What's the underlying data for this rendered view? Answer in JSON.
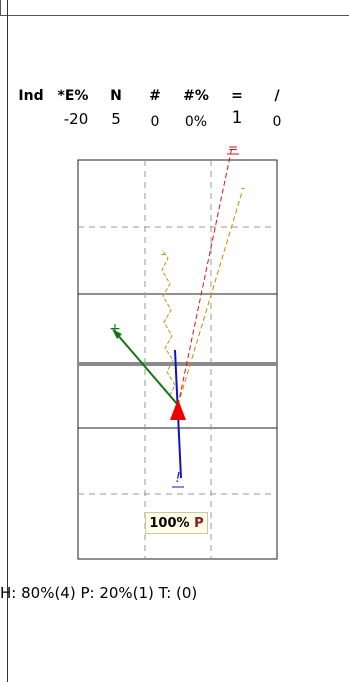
{
  "table": {
    "headers": {
      "ind": "Ind",
      "e_pct": "*E%",
      "n": "N",
      "hash": "#",
      "hash_pct": "#%",
      "eq": "=",
      "slash": "/"
    },
    "values": {
      "e_pct": "-20",
      "n": "5",
      "hash": "0",
      "hash_pct": "0%",
      "eq": "1",
      "slash": "0"
    }
  },
  "arrow_labels": {
    "eq_label": "=",
    "dash_label": "-",
    "zigzag_label": "-",
    "plus_label": "+",
    "bang_label": "!"
  },
  "tooltip": {
    "pct": "100%",
    "letter": "P"
  },
  "footer": {
    "text": "H: 80%(4)   P: 20%(1)   T: (0)"
  },
  "colors": {
    "red": "#dd1111",
    "orange": "#cc8800",
    "green": "#117711",
    "blue": "#1111cc",
    "tan": "#c09020"
  }
}
